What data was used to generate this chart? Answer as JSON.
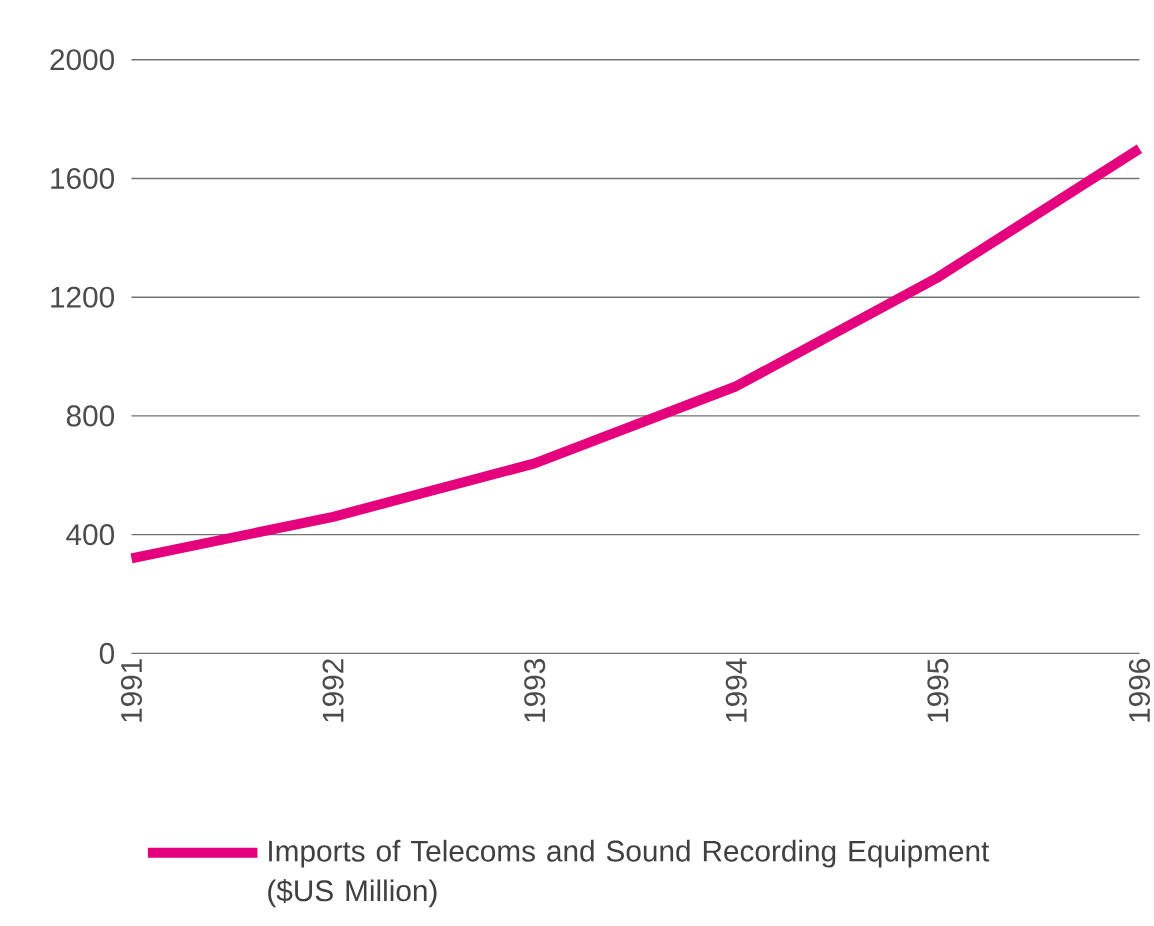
{
  "chart_data": {
    "type": "line",
    "x": [
      1991,
      1992,
      1993,
      1994,
      1995,
      1996
    ],
    "series": [
      {
        "name": "Imports of Telecoms and Sound Recording Equipment ($US Million)",
        "color": "#e5007e",
        "values": [
          320,
          460,
          640,
          900,
          1267,
          1700
        ]
      }
    ],
    "xlim": [
      1991,
      1996
    ],
    "xticks": [
      1991,
      1992,
      1993,
      1994,
      1995,
      1996
    ],
    "ylim": [
      0,
      2000
    ],
    "yticks": [
      0,
      400,
      800,
      1200,
      1600,
      2000
    ],
    "grid": "y",
    "legend": "bottom",
    "marker": "none",
    "line_style": "solid"
  }
}
